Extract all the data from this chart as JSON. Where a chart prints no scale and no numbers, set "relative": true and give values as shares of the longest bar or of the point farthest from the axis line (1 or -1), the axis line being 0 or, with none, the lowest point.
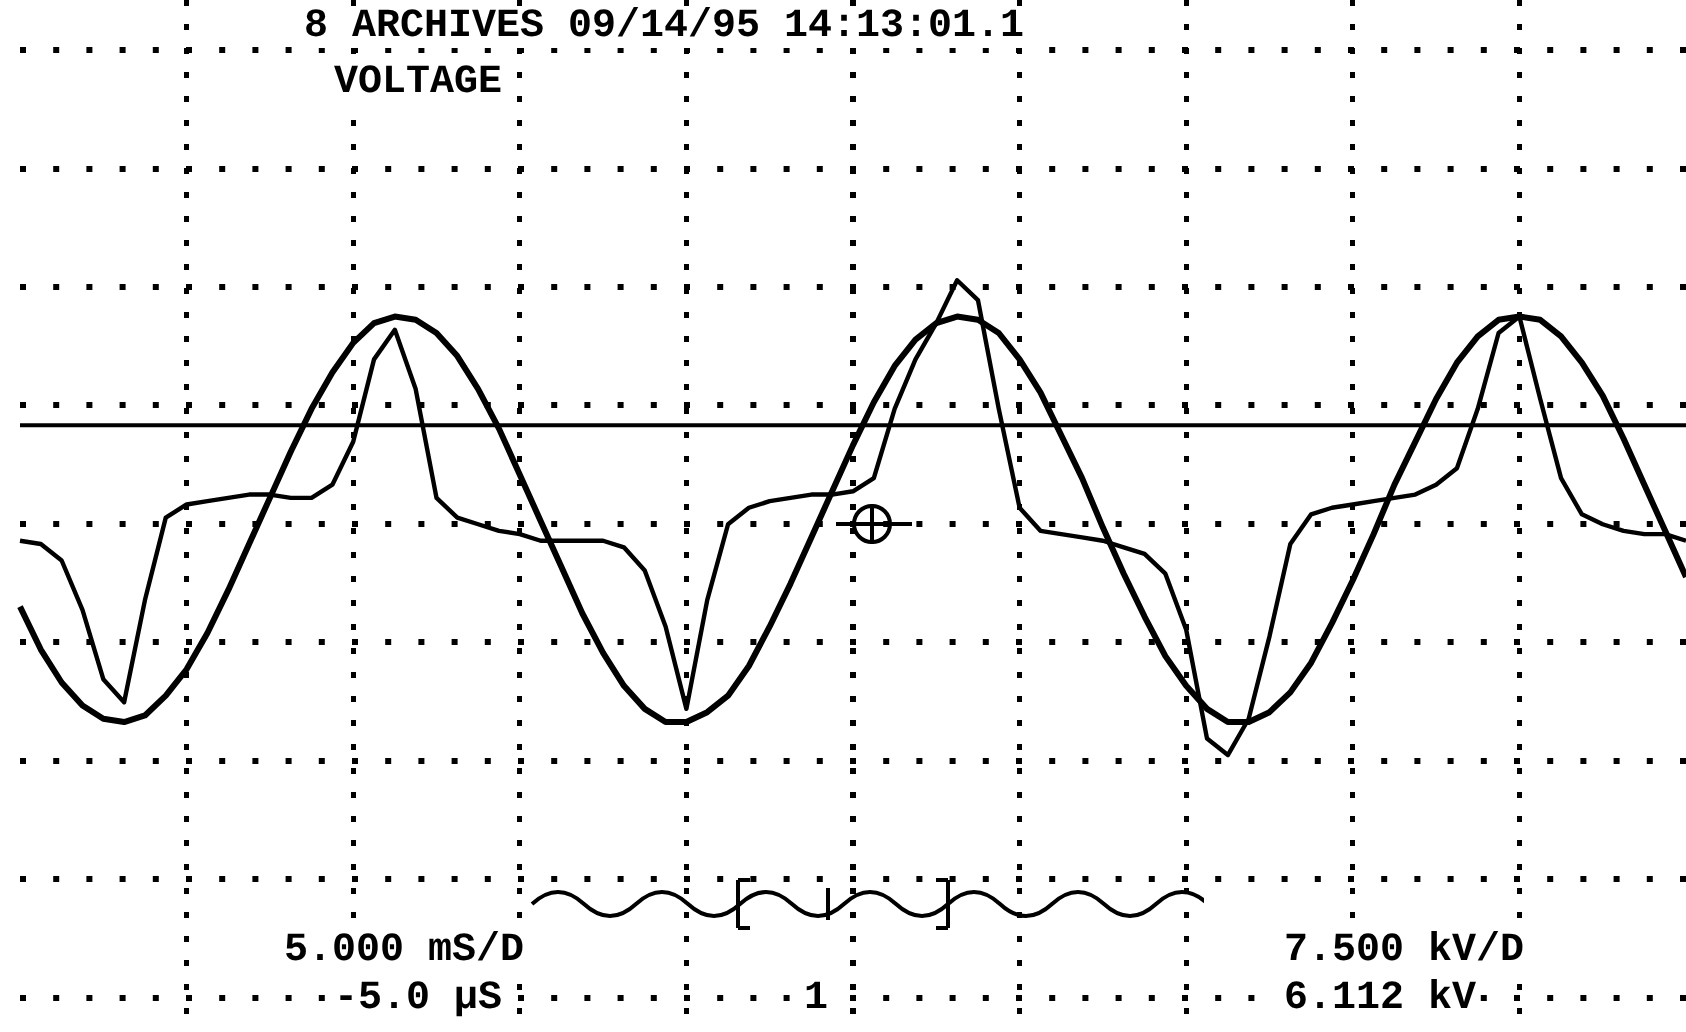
{
  "chart_data": {
    "type": "line",
    "title": "8 ARCHIVES 09/14/95 14:13:01.1",
    "subtitle": "VOLTAGE",
    "annotations": [
      "5.000 mS/D",
      "-5.0 µS",
      "1",
      "7.500 kV/D",
      "6.112 kV"
    ],
    "relative": true,
    "grid": true,
    "legend": false,
    "marker": "none",
    "line_style": "solid",
    "categories": [
      null,
      null,
      null,
      null,
      null,
      null,
      null,
      null,
      null,
      null,
      null,
      null,
      null,
      null,
      null,
      null,
      null,
      null,
      null,
      null,
      null,
      null,
      null,
      null,
      null,
      null,
      null,
      null,
      null,
      null,
      null,
      null,
      null,
      null,
      null,
      null,
      null,
      null,
      null,
      null,
      null,
      null,
      null,
      null,
      null,
      null,
      null,
      null,
      null,
      null,
      null,
      null,
      null,
      null,
      null,
      null,
      null,
      null,
      null,
      null,
      null,
      null,
      null,
      null,
      null,
      null,
      null,
      null,
      null,
      null,
      null,
      null,
      null,
      null,
      null,
      null,
      null,
      null,
      null,
      null,
      null
    ],
    "series": [
      {
        "color": "#000000",
        "values": [
          -0.55,
          -0.68,
          -0.78,
          -0.85,
          -0.89,
          -0.9,
          -0.88,
          -0.82,
          -0.74,
          -0.63,
          -0.5,
          -0.36,
          -0.22,
          -0.08,
          0.05,
          0.16,
          0.25,
          0.31,
          0.33,
          0.32,
          0.28,
          0.21,
          0.11,
          -0.01,
          -0.15,
          -0.29,
          -0.43,
          -0.57,
          -0.69,
          -0.79,
          -0.86,
          -0.9,
          -0.9,
          -0.87,
          -0.82,
          -0.73,
          -0.61,
          -0.48,
          -0.34,
          -0.2,
          -0.06,
          0.07,
          0.18,
          0.26,
          0.31,
          0.33,
          0.32,
          0.28,
          0.2,
          0.1,
          -0.03,
          -0.16,
          -0.31,
          -0.45,
          -0.58,
          -0.7,
          -0.79,
          -0.86,
          -0.9,
          -0.9,
          -0.87,
          -0.81,
          -0.72,
          -0.6,
          -0.47,
          -0.33,
          -0.18,
          -0.05,
          0.08,
          0.19,
          0.27,
          0.32,
          0.33,
          0.32,
          0.27,
          0.19,
          0.09,
          -0.04,
          -0.18,
          -0.32,
          -0.46
        ]
      },
      {
        "color": "#000000",
        "values": [
          -0.35,
          -0.36,
          -0.41,
          -0.56,
          -0.77,
          -0.84,
          -0.53,
          -0.28,
          -0.24,
          -0.23,
          -0.22,
          -0.21,
          -0.21,
          -0.22,
          -0.22,
          -0.18,
          -0.05,
          0.2,
          0.29,
          0.11,
          -0.22,
          -0.28,
          -0.3,
          -0.32,
          -0.33,
          -0.35,
          -0.35,
          -0.35,
          -0.35,
          -0.37,
          -0.44,
          -0.61,
          -0.86,
          -0.53,
          -0.3,
          -0.25,
          -0.23,
          -0.22,
          -0.21,
          -0.21,
          -0.2,
          -0.16,
          0.05,
          0.2,
          0.31,
          0.44,
          0.38,
          0.05,
          -0.25,
          -0.32,
          -0.33,
          -0.34,
          -0.35,
          -0.37,
          -0.39,
          -0.45,
          -0.62,
          -0.95,
          -1.0,
          -0.89,
          -0.64,
          -0.36,
          -0.27,
          -0.25,
          -0.24,
          -0.23,
          -0.22,
          -0.21,
          -0.18,
          -0.13,
          0.05,
          0.28,
          0.33,
          0.08,
          -0.16,
          -0.27,
          -0.3,
          -0.32,
          -0.33,
          -0.33,
          -0.35
        ]
      }
    ]
  }
}
